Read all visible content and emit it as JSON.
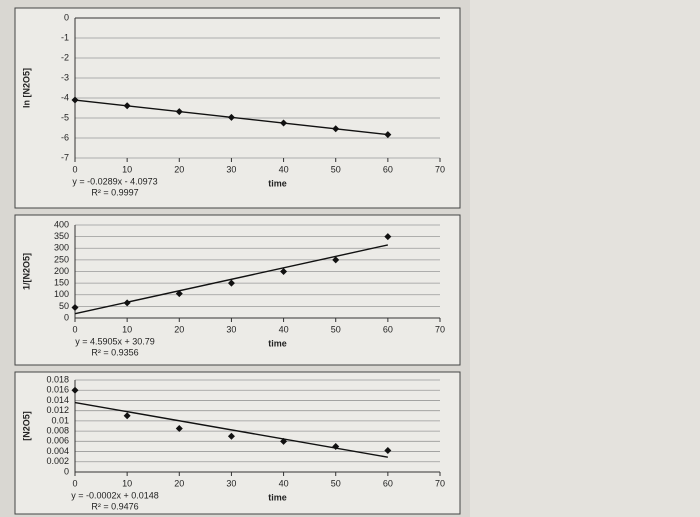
{
  "chart_data": [
    {
      "type": "scatter",
      "x": [
        0,
        10,
        20,
        30,
        40,
        50,
        60
      ],
      "values": [
        -4.1,
        -4.39,
        -4.68,
        -4.97,
        -5.25,
        -5.54,
        -5.83
      ],
      "xlabel": "time",
      "ylabel": "ln [N2O5]",
      "annotations": [
        "y = -0.0289x - 4.0973",
        "R² = 0.9997"
      ],
      "xlim": [
        0,
        70
      ],
      "xticks": [
        0,
        10,
        20,
        30,
        40,
        50,
        60,
        70
      ],
      "ylim": [
        -7,
        0
      ],
      "yticks": [
        0,
        -1,
        -2,
        -3,
        -4,
        -5,
        -6,
        -7
      ],
      "grid": true,
      "color": "#111111"
    },
    {
      "type": "scatter",
      "x": [
        0,
        10,
        20,
        30,
        40,
        50,
        60
      ],
      "values": [
        45,
        65,
        105,
        150,
        200,
        250,
        350
      ],
      "xlabel": "time",
      "ylabel": "1/[N2O5]",
      "annotations": [
        "y = 4.5905x + 30.79",
        "R² = 0.9356"
      ],
      "xlim": [
        0,
        70
      ],
      "xticks": [
        0,
        10,
        20,
        30,
        40,
        50,
        60,
        70
      ],
      "ylim": [
        0,
        400
      ],
      "yticks": [
        0,
        50,
        100,
        150,
        200,
        250,
        300,
        350,
        400
      ],
      "grid": true,
      "color": "#111111"
    },
    {
      "type": "scatter",
      "x": [
        0,
        10,
        20,
        30,
        40,
        50,
        60
      ],
      "values": [
        0.016,
        0.011,
        0.0085,
        0.007,
        0.006,
        0.005,
        0.0042
      ],
      "xlabel": "time",
      "ylabel": "[N2O5]",
      "annotations": [
        "y = -0.0002x + 0.0148",
        "R² = 0.9476"
      ],
      "xlim": [
        0,
        70
      ],
      "xticks": [
        0,
        10,
        20,
        30,
        40,
        50,
        60,
        70
      ],
      "ylim": [
        0,
        0.018
      ],
      "yticks": [
        0,
        0.002,
        0.004,
        0.006,
        0.008,
        0.01,
        0.012,
        0.014,
        0.016,
        0.018
      ],
      "grid": true,
      "color": "#111111"
    }
  ]
}
